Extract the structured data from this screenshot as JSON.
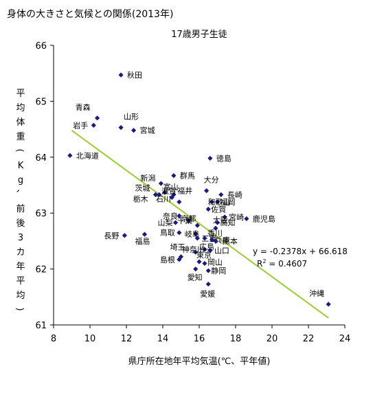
{
  "page": {
    "title": "身体の大きさと気候との関係(2013年)"
  },
  "chart_data": {
    "type": "scatter",
    "title": "",
    "subtitle": "17歳男子生徒",
    "xlabel": "県庁所在地年平均気温(℃、平年値)",
    "ylabel": "平均体重(Kg、前後3カ年平均)",
    "xlim": [
      8,
      24
    ],
    "ylim": [
      61,
      66
    ],
    "x_ticks": [
      8,
      10,
      12,
      14,
      16,
      18,
      20,
      22,
      24
    ],
    "y_ticks": [
      61,
      62,
      63,
      64,
      65,
      66
    ],
    "grid": false,
    "legend": "none",
    "marker_color": "#1a1a80",
    "trend_color": "#9acd32",
    "trendline": {
      "slope": -0.2378,
      "intercept": 66.618,
      "x_range": [
        9,
        23.1
      ]
    },
    "equation": "y = -0.2378x + 66.618",
    "r2_prefix": "R",
    "r2_sup": "2",
    "r2_value": " = 0.4607",
    "points": [
      {
        "label": "秋田",
        "x": 11.7,
        "y": 65.47
      },
      {
        "label": "青森",
        "x": 10.4,
        "y": 64.7
      },
      {
        "label": "岩手",
        "x": 10.2,
        "y": 64.57
      },
      {
        "label": "山形",
        "x": 11.7,
        "y": 64.53
      },
      {
        "label": "宮城",
        "x": 12.4,
        "y": 64.48
      },
      {
        "label": "北海道",
        "x": 8.9,
        "y": 64.03
      },
      {
        "label": "徳島",
        "x": 16.6,
        "y": 63.98
      },
      {
        "label": "新潟",
        "x": 13.9,
        "y": 63.53
      },
      {
        "label": "群馬",
        "x": 14.6,
        "y": 63.67
      },
      {
        "label": "大分",
        "x": 16.4,
        "y": 63.4
      },
      {
        "label": "長崎",
        "x": 17.2,
        "y": 63.33
      },
      {
        "label": "富山",
        "x": 14.1,
        "y": 63.37
      },
      {
        "label": "茨城",
        "x": 13.6,
        "y": 63.33
      },
      {
        "label": "福井",
        "x": 14.5,
        "y": 63.28
      },
      {
        "label": "石川",
        "x": 14.6,
        "y": 63.33
      },
      {
        "label": "栃木",
        "x": 13.8,
        "y": 63.33
      },
      {
        "label": "福岡",
        "x": 17.0,
        "y": 63.2
      },
      {
        "label": "和歌山",
        "x": 16.7,
        "y": 63.2
      },
      {
        "label": "滋賀",
        "x": 14.9,
        "y": 63.2
      },
      {
        "label": "佐賀",
        "x": 16.5,
        "y": 63.07
      },
      {
        "label": "奈良",
        "x": 14.9,
        "y": 62.95
      },
      {
        "label": "宮崎",
        "x": 17.4,
        "y": 62.93
      },
      {
        "label": "鹿児島",
        "x": 18.6,
        "y": 62.9
      },
      {
        "label": "千葉",
        "x": 15.4,
        "y": 62.87
      },
      {
        "label": "高知",
        "x": 17.0,
        "y": 62.83
      },
      {
        "label": "山梨",
        "x": 14.7,
        "y": 62.83
      },
      {
        "label": "京都",
        "x": 15.9,
        "y": 62.78
      },
      {
        "label": "大阪",
        "x": 16.9,
        "y": 62.73
      },
      {
        "label": "鳥取",
        "x": 14.9,
        "y": 62.65
      },
      {
        "label": "岐阜",
        "x": 15.8,
        "y": 62.63
      },
      {
        "label": "長野",
        "x": 11.9,
        "y": 62.6
      },
      {
        "label": "三重",
        "x": 15.9,
        "y": 62.55
      },
      {
        "label": "香川",
        "x": 16.3,
        "y": 62.55
      },
      {
        "label": "兵庫",
        "x": 16.7,
        "y": 62.52
      },
      {
        "label": "福島",
        "x": 13.0,
        "y": 62.62
      },
      {
        "label": "熊本",
        "x": 16.9,
        "y": 62.5
      },
      {
        "label": "島根",
        "x": 14.9,
        "y": 62.17
      },
      {
        "label": "埼玉",
        "x": 15.0,
        "y": 62.22
      },
      {
        "label": "神奈川",
        "x": 15.8,
        "y": 62.3
      },
      {
        "label": "山口",
        "x": 16.6,
        "y": 62.33
      },
      {
        "label": "広島",
        "x": 16.3,
        "y": 62.35
      },
      {
        "label": "東京",
        "x": 16.0,
        "y": 62.13
      },
      {
        "label": "岡山",
        "x": 16.3,
        "y": 62.1
      },
      {
        "label": "静岡",
        "x": 16.5,
        "y": 61.97
      },
      {
        "label": "愛知",
        "x": 15.8,
        "y": 62.0
      },
      {
        "label": "愛媛",
        "x": 16.5,
        "y": 61.73
      },
      {
        "label": "沖縄",
        "x": 23.1,
        "y": 61.37
      }
    ]
  }
}
